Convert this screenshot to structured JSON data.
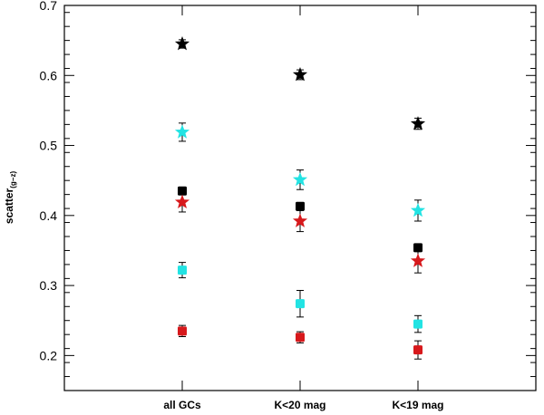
{
  "chart_data": {
    "type": "scatter",
    "title": "",
    "xlabel": "",
    "ylabel": "scatter",
    "ylabel_subscript": "(g−z)",
    "ylim": [
      0.15,
      0.7
    ],
    "yticks": [
      0.2,
      0.3,
      0.4,
      0.5,
      0.6,
      0.7
    ],
    "ytick_labels": [
      "0.2",
      "0.3",
      "0.4",
      "0.5",
      "0.6",
      "0.7"
    ],
    "categories": [
      "all GCs",
      "K<20 mag",
      "K<19 mag"
    ],
    "xlim": [
      0,
      4
    ],
    "x_positions": [
      1,
      2,
      3
    ],
    "series": [
      {
        "name": "black star",
        "marker": "star",
        "color": "#000000",
        "values": [
          0.645,
          0.601,
          0.531
        ],
        "errors": [
          0.006,
          0.007,
          0.008
        ]
      },
      {
        "name": "cyan star",
        "marker": "star",
        "color": "#22e3e3",
        "values": [
          0.519,
          0.451,
          0.407
        ],
        "errors": [
          0.013,
          0.014,
          0.015
        ]
      },
      {
        "name": "black square",
        "marker": "square",
        "color": "#000000",
        "values": [
          0.435,
          0.413,
          0.354
        ],
        "errors": [
          0.004,
          0.005,
          0.005
        ]
      },
      {
        "name": "red star",
        "marker": "star",
        "color": "#d7191c",
        "values": [
          0.419,
          0.392,
          0.335
        ],
        "errors": [
          0.014,
          0.015,
          0.017
        ]
      },
      {
        "name": "cyan square",
        "marker": "square",
        "color": "#22e3e3",
        "values": [
          0.322,
          0.274,
          0.245
        ],
        "errors": [
          0.011,
          0.019,
          0.012
        ]
      },
      {
        "name": "red square",
        "marker": "square",
        "color": "#d7191c",
        "values": [
          0.235,
          0.226,
          0.208
        ],
        "errors": [
          0.008,
          0.008,
          0.013
        ]
      }
    ]
  }
}
